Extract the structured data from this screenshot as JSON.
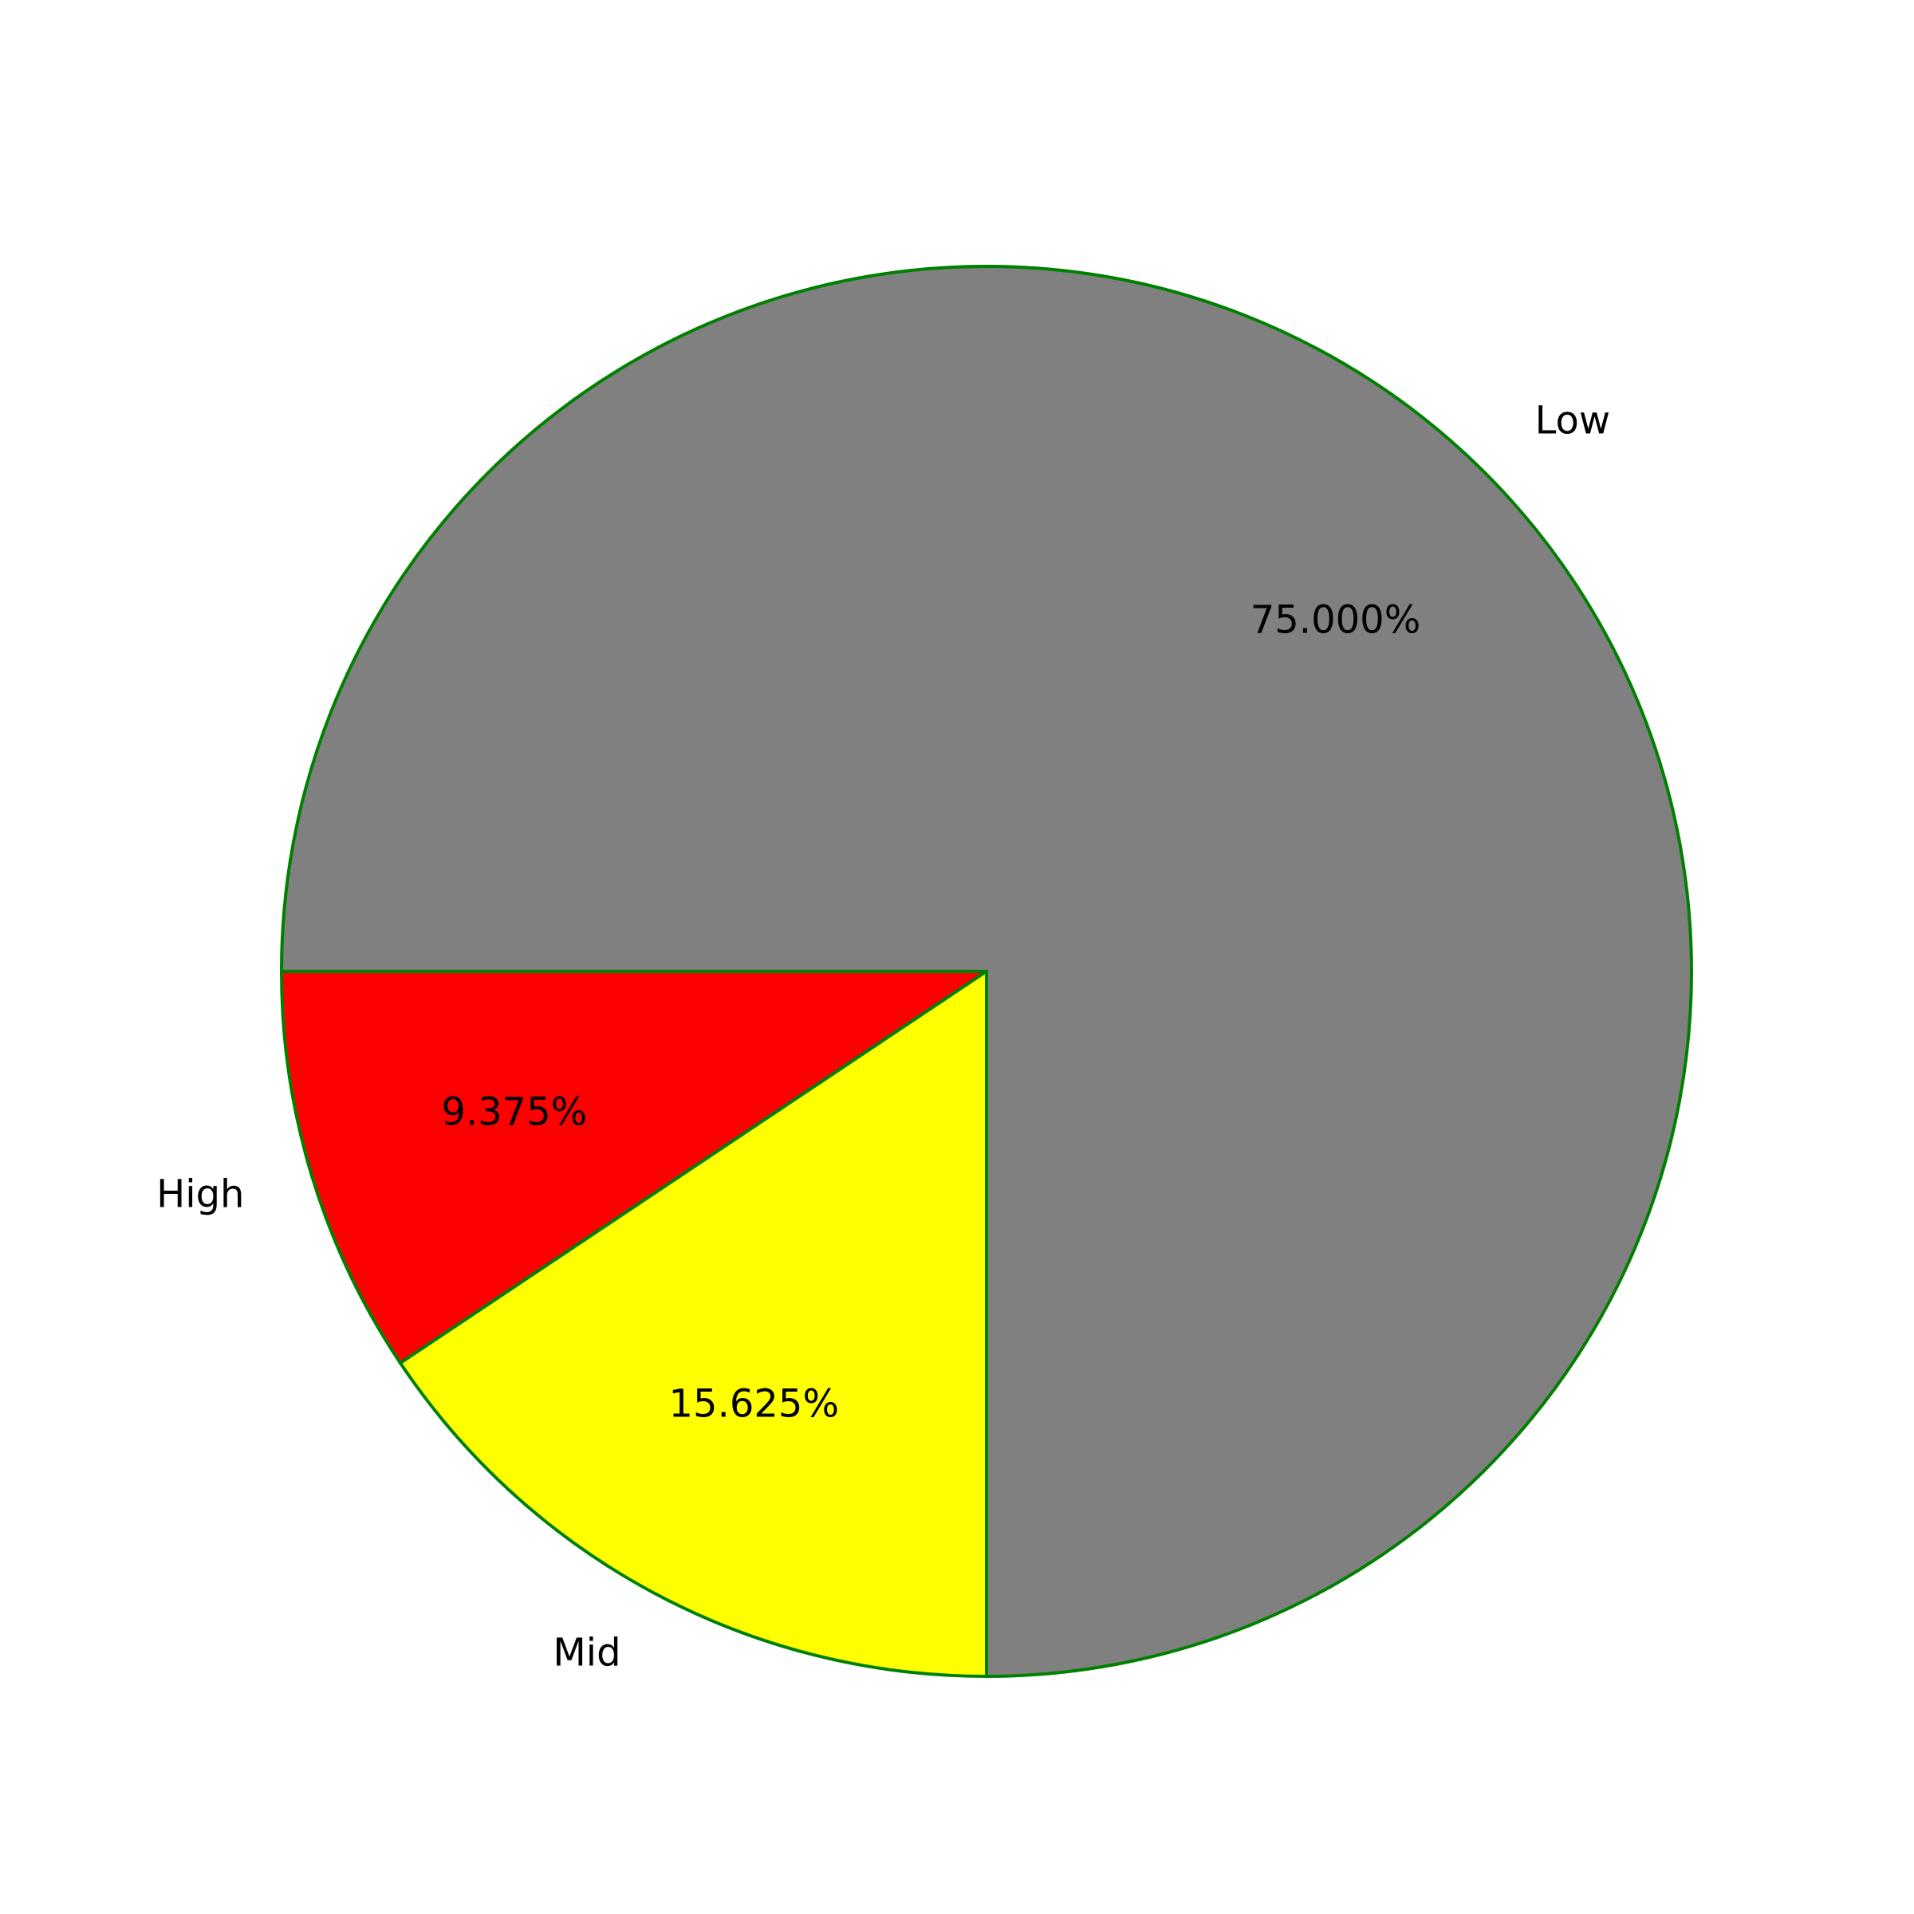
{
  "chart_data": {
    "type": "pie",
    "title": "",
    "slices": [
      {
        "label": "Low",
        "pct_label": "75.000%",
        "value": 75.0,
        "color": "#808080"
      },
      {
        "label": "High",
        "pct_label": "9.375%",
        "value": 9.375,
        "color": "#ff0000"
      },
      {
        "label": "Mid",
        "pct_label": "15.625%",
        "value": 15.625,
        "color": "#ffff00"
      }
    ],
    "edge_color": "#008000",
    "start_angle_deg": 270,
    "direction": "counterclockwise"
  }
}
